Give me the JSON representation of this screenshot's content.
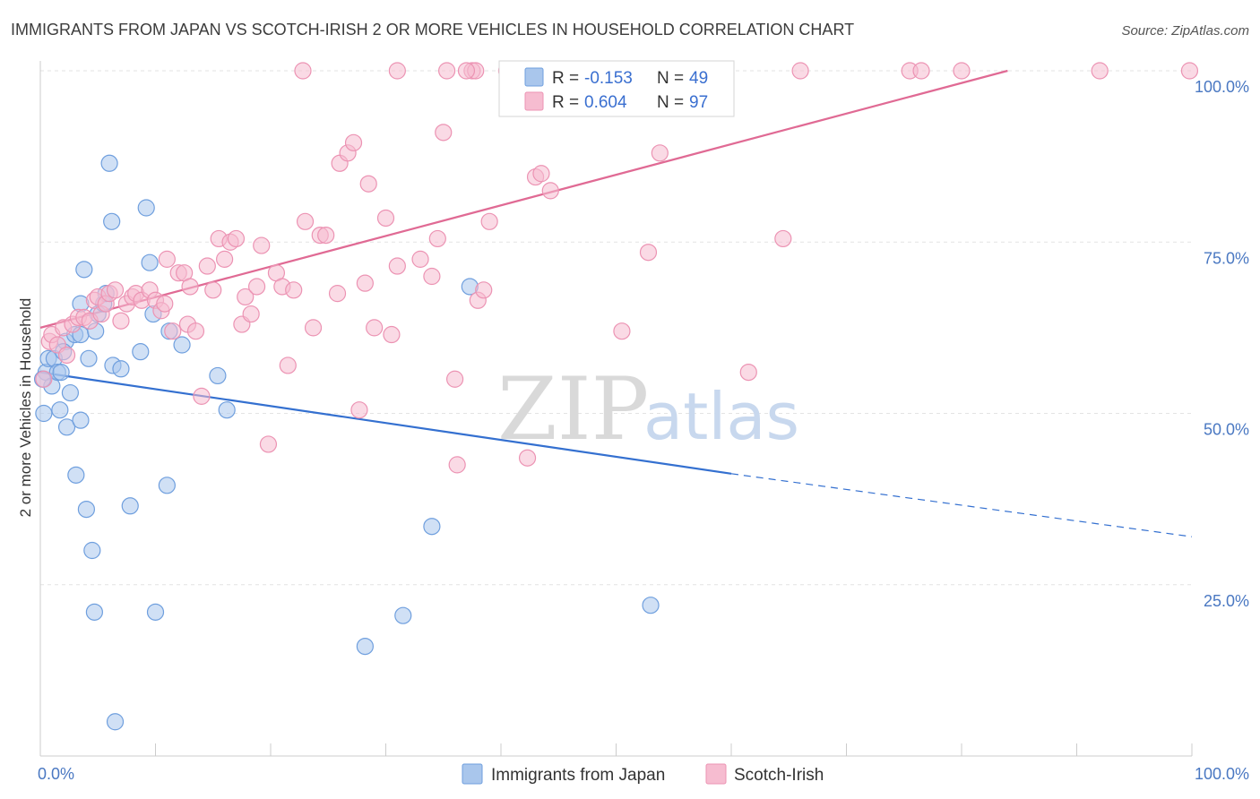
{
  "title": "IMMIGRANTS FROM JAPAN VS SCOTCH-IRISH 2 OR MORE VEHICLES IN HOUSEHOLD CORRELATION CHART",
  "source": "Source: ZipAtlas.com",
  "watermark": {
    "zip": "ZIP",
    "atlas": "atlas"
  },
  "colors": {
    "japan_fill": "#a9c6ec",
    "japan_stroke": "#6f9fde",
    "japan_line": "#3470d0",
    "scotch_fill": "#f6bcd0",
    "scotch_stroke": "#ec93b3",
    "scotch_line": "#e06a94",
    "grid": "#e3e3e3",
    "tick_label": "#4a78c2"
  },
  "legend": {
    "japan": {
      "r_label": "R =",
      "r_value": "-0.153",
      "n_label": "N =",
      "n_value": "49"
    },
    "scotch": {
      "r_label": "R =",
      "r_value": "0.604",
      "n_label": "N =",
      "n_value": "97"
    }
  },
  "chart_data": {
    "type": "scatter",
    "xlabel": "",
    "ylabel": "2 or more Vehicles in Household",
    "xlim": [
      0,
      100
    ],
    "ylim": [
      0,
      100
    ],
    "x_tick_labels": [
      "0.0%",
      "100.0%"
    ],
    "y_tick_labels": [
      "25.0%",
      "50.0%",
      "75.0%",
      "100.0%"
    ],
    "y_ticks": [
      25,
      50,
      75,
      100
    ],
    "legend_position": "top-center",
    "grid": true,
    "series": [
      {
        "name": "Immigrants from Japan",
        "points": [
          [
            0.3,
            50.0
          ],
          [
            0.5,
            56.0
          ],
          [
            0.7,
            58.0
          ],
          [
            1.0,
            54.0
          ],
          [
            1.2,
            58.0
          ],
          [
            1.5,
            56.0
          ],
          [
            1.8,
            56.0
          ],
          [
            1.7,
            50.5
          ],
          [
            2.2,
            60.5
          ],
          [
            2.3,
            48.0
          ],
          [
            2.6,
            53.0
          ],
          [
            3.0,
            61.5
          ],
          [
            3.1,
            41.0
          ],
          [
            3.5,
            61.5
          ],
          [
            3.5,
            49.0
          ],
          [
            3.5,
            66.0
          ],
          [
            3.8,
            71.0
          ],
          [
            4.0,
            36.0
          ],
          [
            4.2,
            58.0
          ],
          [
            4.5,
            30.0
          ],
          [
            4.7,
            21.0
          ],
          [
            4.8,
            62.0
          ],
          [
            5.0,
            64.5
          ],
          [
            5.5,
            66.0
          ],
          [
            5.7,
            67.5
          ],
          [
            6.0,
            86.5
          ],
          [
            6.2,
            78.0
          ],
          [
            6.3,
            57.0
          ],
          [
            6.5,
            5.0
          ],
          [
            7.0,
            56.5
          ],
          [
            7.8,
            36.5
          ],
          [
            8.7,
            59.0
          ],
          [
            9.2,
            80.0
          ],
          [
            9.5,
            72.0
          ],
          [
            9.8,
            64.5
          ],
          [
            10.0,
            21.0
          ],
          [
            11.0,
            39.5
          ],
          [
            11.2,
            62.0
          ],
          [
            12.3,
            60.0
          ],
          [
            15.4,
            55.5
          ],
          [
            16.2,
            50.5
          ],
          [
            28.2,
            16.0
          ],
          [
            31.5,
            20.5
          ],
          [
            34.0,
            33.5
          ],
          [
            37.3,
            68.5
          ],
          [
            53.0,
            22.0
          ],
          [
            42.0,
            100.0
          ],
          [
            0.2,
            55.0
          ],
          [
            2.0,
            59.0
          ]
        ],
        "trend": {
          "x0": 0,
          "y0": 56.0,
          "x1": 60,
          "y1": 41.2,
          "dash_to_x": 100,
          "dash_to_y": 32.0
        }
      },
      {
        "name": "Scotch-Irish",
        "points": [
          [
            0.3,
            55.0
          ],
          [
            0.8,
            60.5
          ],
          [
            1.0,
            61.5
          ],
          [
            1.5,
            60.0
          ],
          [
            2.0,
            62.5
          ],
          [
            2.3,
            58.5
          ],
          [
            2.8,
            63.0
          ],
          [
            3.3,
            64.0
          ],
          [
            3.8,
            64.0
          ],
          [
            4.3,
            63.5
          ],
          [
            4.7,
            66.5
          ],
          [
            5.0,
            67.0
          ],
          [
            5.3,
            64.5
          ],
          [
            5.7,
            66.0
          ],
          [
            6.0,
            67.5
          ],
          [
            6.5,
            68.0
          ],
          [
            7.0,
            63.5
          ],
          [
            7.5,
            66.0
          ],
          [
            8.0,
            67.0
          ],
          [
            8.3,
            67.5
          ],
          [
            8.8,
            66.5
          ],
          [
            9.5,
            68.0
          ],
          [
            10.0,
            66.5
          ],
          [
            10.5,
            65.0
          ],
          [
            10.8,
            66.0
          ],
          [
            11.0,
            72.5
          ],
          [
            11.5,
            62.0
          ],
          [
            12.0,
            70.5
          ],
          [
            12.5,
            70.5
          ],
          [
            12.8,
            63.0
          ],
          [
            13.0,
            68.5
          ],
          [
            13.5,
            62.0
          ],
          [
            14.0,
            52.5
          ],
          [
            14.5,
            71.5
          ],
          [
            15.0,
            68.0
          ],
          [
            15.5,
            75.5
          ],
          [
            16.0,
            72.5
          ],
          [
            16.5,
            75.0
          ],
          [
            17.0,
            75.5
          ],
          [
            17.5,
            63.0
          ],
          [
            17.8,
            67.0
          ],
          [
            18.3,
            64.5
          ],
          [
            18.8,
            68.5
          ],
          [
            19.2,
            74.5
          ],
          [
            19.8,
            45.5
          ],
          [
            20.5,
            70.5
          ],
          [
            21.0,
            68.5
          ],
          [
            21.5,
            57.0
          ],
          [
            22.0,
            68.0
          ],
          [
            23.0,
            78.0
          ],
          [
            23.7,
            62.5
          ],
          [
            24.3,
            76.0
          ],
          [
            24.8,
            76.0
          ],
          [
            25.8,
            67.5
          ],
          [
            26.0,
            86.5
          ],
          [
            26.7,
            88.0
          ],
          [
            27.2,
            89.5
          ],
          [
            27.7,
            50.5
          ],
          [
            28.2,
            69.0
          ],
          [
            28.5,
            83.5
          ],
          [
            29.0,
            62.5
          ],
          [
            30.0,
            78.5
          ],
          [
            30.5,
            61.5
          ],
          [
            31.0,
            71.5
          ],
          [
            33.0,
            72.5
          ],
          [
            34.0,
            70.0
          ],
          [
            34.5,
            75.5
          ],
          [
            35.0,
            91.0
          ],
          [
            36.0,
            55.0
          ],
          [
            36.2,
            42.5
          ],
          [
            37.5,
            100.0
          ],
          [
            38.0,
            66.5
          ],
          [
            38.5,
            68.0
          ],
          [
            39.0,
            78.0
          ],
          [
            42.3,
            43.5
          ],
          [
            43.0,
            84.5
          ],
          [
            43.5,
            85.0
          ],
          [
            44.3,
            82.5
          ],
          [
            50.5,
            62.0
          ],
          [
            52.8,
            73.5
          ],
          [
            53.8,
            88.0
          ],
          [
            61.5,
            56.0
          ],
          [
            64.5,
            75.5
          ],
          [
            22.8,
            100.0
          ],
          [
            31.0,
            100.0
          ],
          [
            35.3,
            100.0
          ],
          [
            37.8,
            100.0
          ],
          [
            40.5,
            100.0
          ],
          [
            47.2,
            100.0
          ],
          [
            56.0,
            100.0
          ],
          [
            66.0,
            100.0
          ],
          [
            75.5,
            100.0
          ],
          [
            76.5,
            100.0
          ],
          [
            80.0,
            100.0
          ],
          [
            92.0,
            100.0
          ],
          [
            99.8,
            100.0
          ],
          [
            37.0,
            100.0
          ]
        ],
        "trend": {
          "x0": 0,
          "y0": 62.5,
          "x1": 84,
          "y1": 100.0
        }
      }
    ]
  },
  "bottom_legend": [
    {
      "label": "Immigrants from Japan",
      "series": 0
    },
    {
      "label": "Scotch-Irish",
      "series": 1
    }
  ]
}
